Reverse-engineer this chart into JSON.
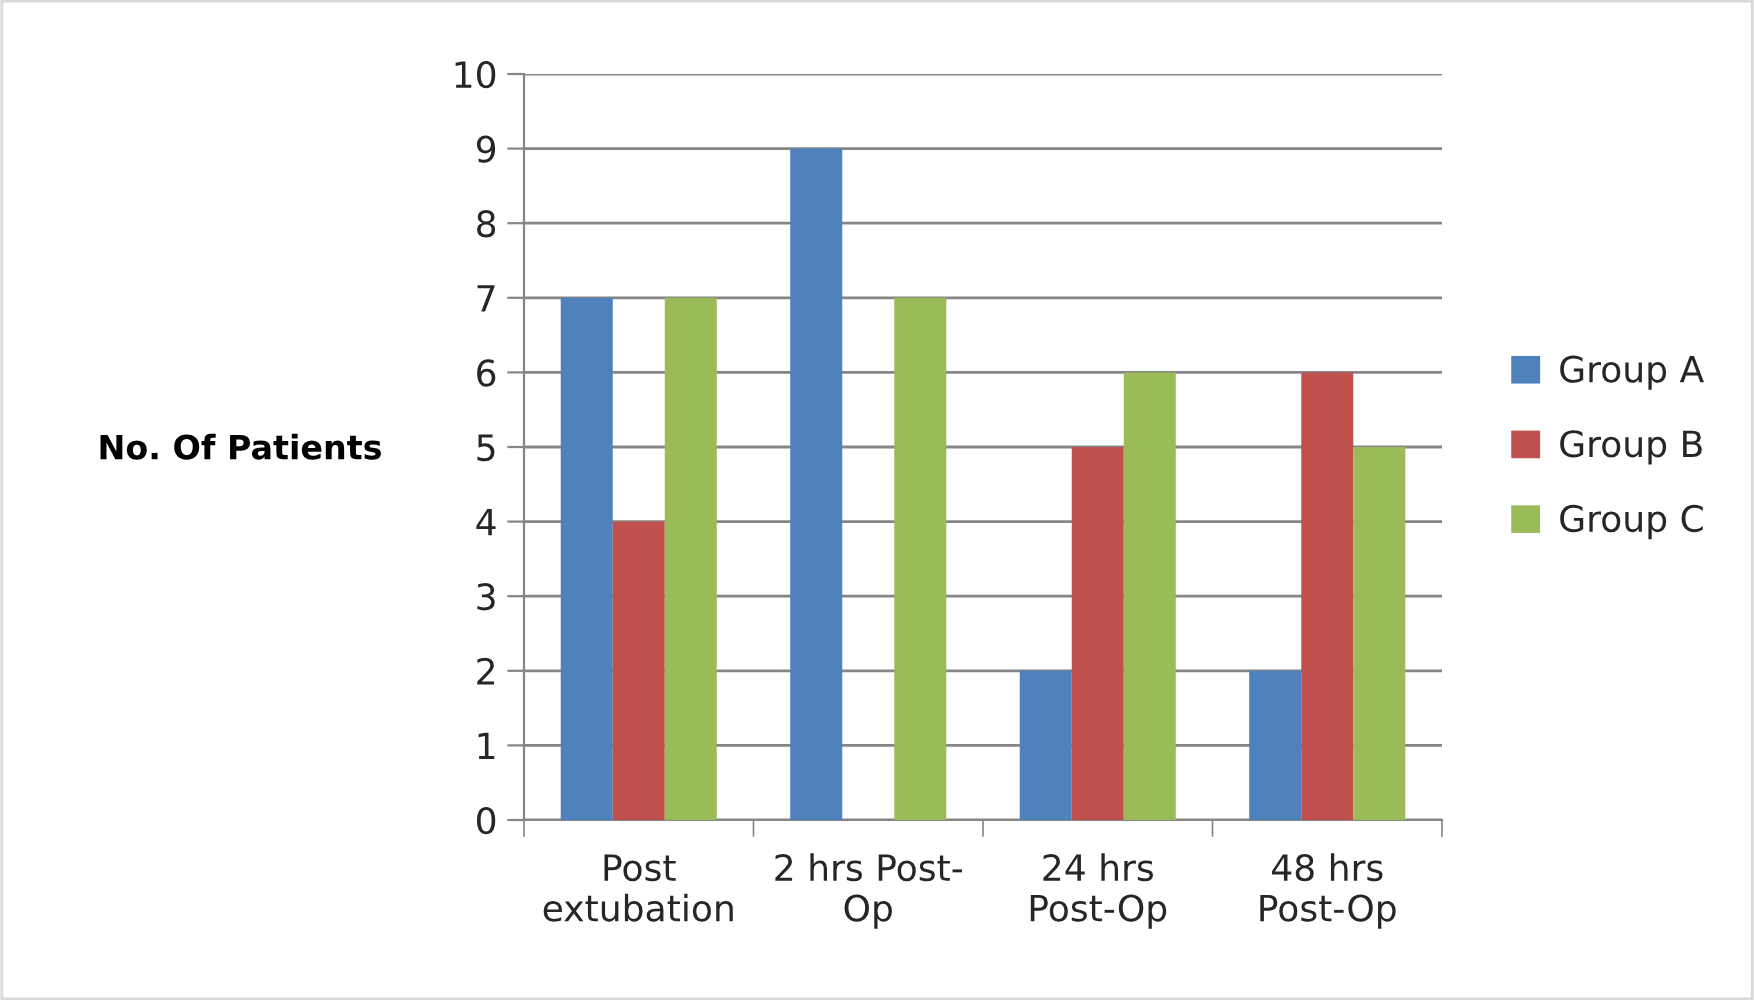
{
  "chart_data": {
    "type": "bar",
    "ylabel": "No. Of Patients",
    "categories": [
      "Post\nextubation",
      "2 hrs Post-\nOp",
      "24 hrs\nPost-Op",
      "48 hrs\nPost-Op"
    ],
    "series": [
      {
        "name": "Group A",
        "color": "#4f81bd",
        "values": [
          7,
          9,
          2,
          2
        ]
      },
      {
        "name": "Group B",
        "color": "#c0504d",
        "values": [
          4,
          0,
          5,
          6
        ]
      },
      {
        "name": "Group C",
        "color": "#9bbb59",
        "values": [
          7,
          7,
          6,
          5
        ]
      }
    ],
    "ylim": [
      0,
      10
    ],
    "yticks": [
      0,
      1,
      2,
      3,
      4,
      5,
      6,
      7,
      8,
      9,
      10
    ],
    "grid": "y",
    "legend": "right"
  }
}
